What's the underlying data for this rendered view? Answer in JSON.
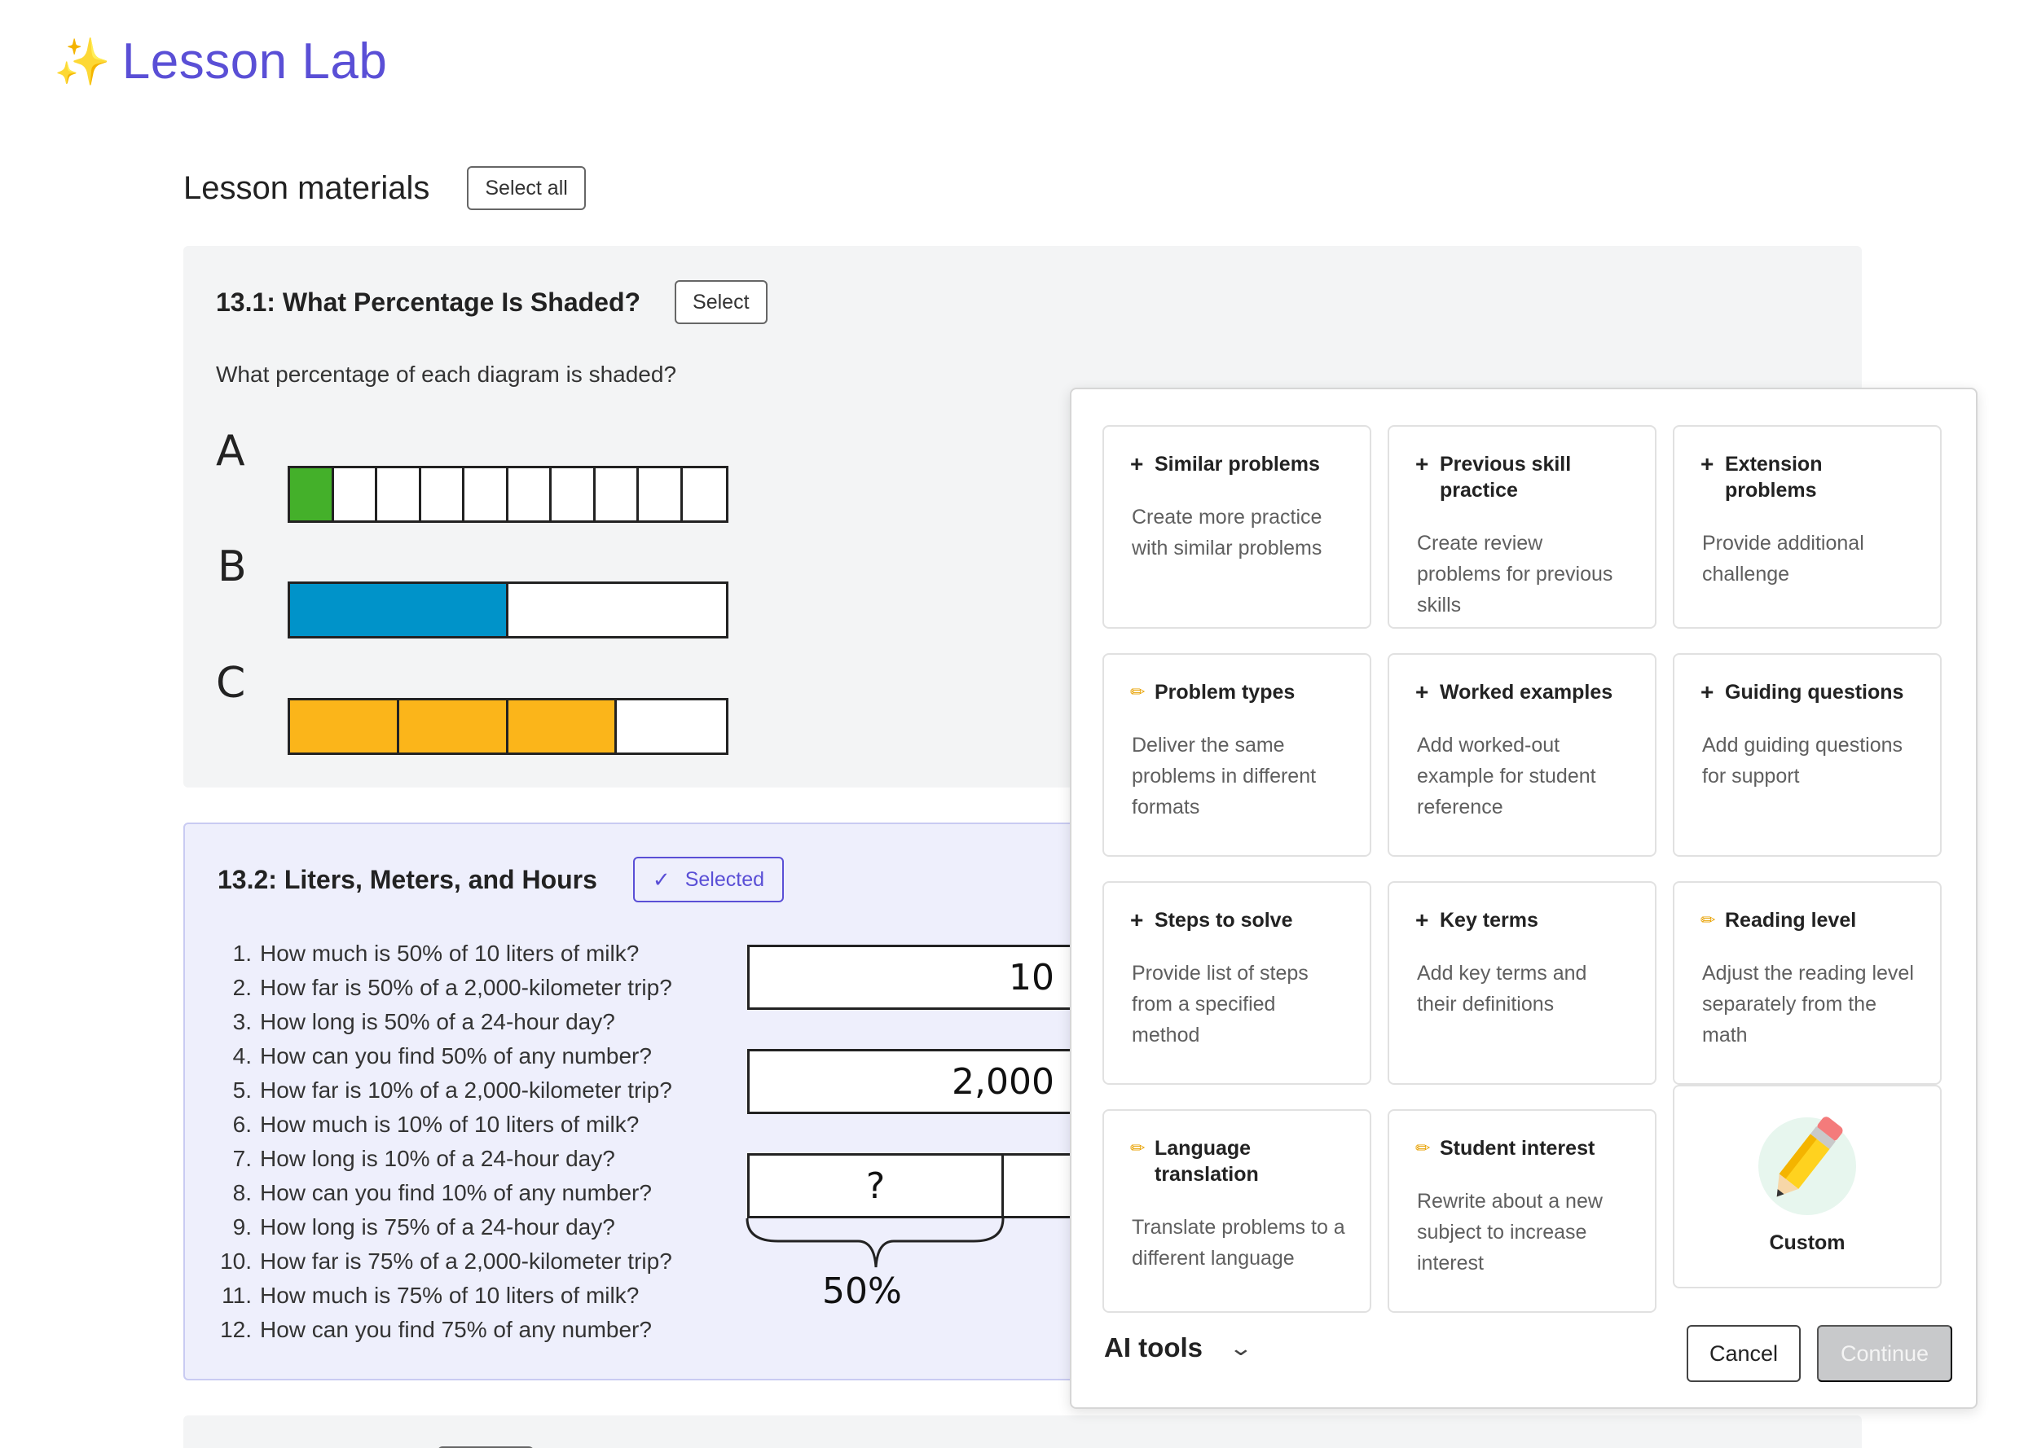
{
  "app": {
    "name": "Lesson Lab",
    "sparkle": "✨"
  },
  "materials": {
    "heading": "Lesson materials",
    "select_all": "Select all"
  },
  "section1": {
    "title": "13.1: What Percentage Is Shaded?",
    "select_label": "Select",
    "question": "What percentage of each diagram is shaded?",
    "bars": [
      {
        "label": "A",
        "parts": 10,
        "shaded": 1,
        "color": "#44b02a"
      },
      {
        "label": "B",
        "parts": 2,
        "shaded": 1,
        "color": "#0093c9"
      },
      {
        "label": "C",
        "parts": 4,
        "shaded": 3,
        "color": "#fbb51a"
      }
    ]
  },
  "section2": {
    "title": "13.2: Liters, Meters, and Hours",
    "selected_label": "Selected",
    "questions": [
      {
        "num": "1.",
        "text": "How much is 50% of 10 liters of milk?"
      },
      {
        "num": "2.",
        "text": "How far is 50% of a 2,000-kilometer trip?"
      },
      {
        "num": "3.",
        "text": "How long is 50% of a 24-hour day?"
      },
      {
        "num": "4.",
        "text": "How can you find 50% of any number?"
      },
      {
        "num": "5.",
        "text": "How far is 10% of a 2,000-kilometer trip?"
      },
      {
        "num": "6.",
        "text": "How much is 10% of 10 liters of milk?"
      },
      {
        "num": "7.",
        "text": "How long is 10% of a 24-hour day?"
      },
      {
        "num": "8.",
        "text": "How can you find 10% of any number?"
      },
      {
        "num": "9.",
        "text": "How long is 75% of a 24-hour day?"
      },
      {
        "num": "10.",
        "text": "How far is 75% of a 2,000-kilometer trip?"
      },
      {
        "num": "11.",
        "text": "How much is 75% of 10 liters of milk?"
      },
      {
        "num": "12.",
        "text": "How can you find 75% of any number?"
      }
    ],
    "diagram": {
      "tape1": "10",
      "tape2": "2,000",
      "unknown": "?",
      "brace_label": "50%"
    }
  },
  "ai_panel": {
    "cards": [
      {
        "icon": "plus",
        "title": "Similar problems",
        "desc": "Create more practice with similar problems"
      },
      {
        "icon": "plus",
        "title": "Previous skill practice",
        "desc": "Create review problems for previous skills"
      },
      {
        "icon": "plus",
        "title": "Extension problems",
        "desc": "Provide additional challenge"
      },
      {
        "icon": "pencil",
        "title": "Problem types",
        "desc": "Deliver the same problems in different formats"
      },
      {
        "icon": "plus",
        "title": "Worked examples",
        "desc": "Add worked-out example for student reference"
      },
      {
        "icon": "plus",
        "title": "Guiding questions",
        "desc": "Add guiding questions for support"
      },
      {
        "icon": "plus",
        "title": "Steps to solve",
        "desc": "Provide list of steps from a specified method"
      },
      {
        "icon": "plus",
        "title": "Key terms",
        "desc": "Add key terms and their definitions"
      },
      {
        "icon": "pencil",
        "title": "Reading level",
        "desc": "Adjust the reading level separately from the math"
      },
      {
        "icon": "pencil",
        "title": "Language translation",
        "desc": "Translate problems to a different language"
      },
      {
        "icon": "pencil",
        "title": "Student interest",
        "desc": "Rewrite about a new subject to increase interest"
      }
    ],
    "custom_label": "Custom",
    "footer": {
      "label": "AI tools",
      "cancel": "Cancel",
      "continue": "Continue",
      "continue_disabled": true
    }
  }
}
